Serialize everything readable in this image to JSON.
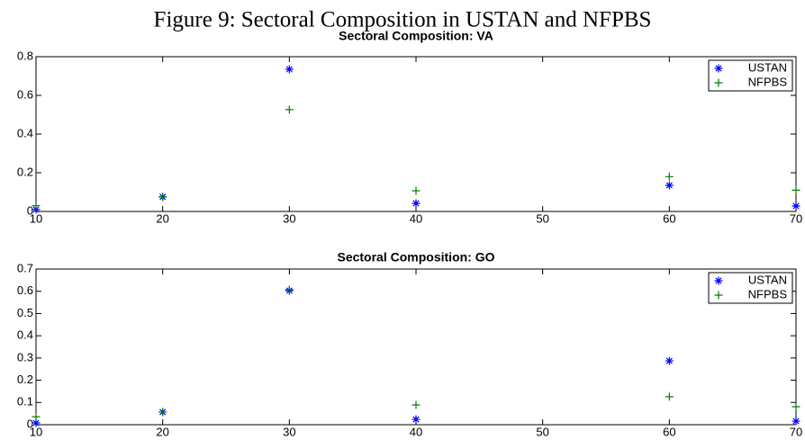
{
  "title": "Figure 9: Sectoral Composition in USTAN and NFPBS",
  "chart_data": [
    {
      "type": "scatter",
      "title": "Sectoral Composition: VA",
      "x": [
        10,
        20,
        30,
        40,
        60,
        70
      ],
      "series": [
        {
          "name": "USTAN",
          "color": "#0000ff",
          "marker": "*",
          "values": [
            0.01,
            0.075,
            0.735,
            0.042,
            0.135,
            0.028
          ]
        },
        {
          "name": "NFPBS",
          "color": "#008000",
          "marker": "+",
          "values": [
            0.03,
            0.075,
            0.526,
            0.107,
            0.18,
            0.11
          ]
        }
      ],
      "xlim": [
        10,
        70
      ],
      "xticks": [
        10,
        20,
        30,
        40,
        50,
        60,
        70
      ],
      "ylim": [
        0,
        0.8
      ],
      "yticks": [
        0,
        0.2,
        0.4,
        0.6,
        0.8
      ],
      "legend": "upper right"
    },
    {
      "type": "scatter",
      "title": "Sectoral Composition: GO",
      "x": [
        10,
        20,
        30,
        40,
        60,
        70
      ],
      "series": [
        {
          "name": "USTAN",
          "color": "#0000ff",
          "marker": "*",
          "values": [
            0.008,
            0.057,
            0.603,
            0.024,
            0.287,
            0.016
          ]
        },
        {
          "name": "NFPBS",
          "color": "#008000",
          "marker": "+",
          "values": [
            0.036,
            0.057,
            0.607,
            0.089,
            0.126,
            0.081
          ]
        }
      ],
      "xlim": [
        10,
        70
      ],
      "xticks": [
        10,
        20,
        30,
        40,
        50,
        60,
        70
      ],
      "ylim": [
        0,
        0.7
      ],
      "yticks": [
        0,
        0.1,
        0.2,
        0.3,
        0.4,
        0.5,
        0.6,
        0.7
      ],
      "legend": "upper right"
    }
  ]
}
